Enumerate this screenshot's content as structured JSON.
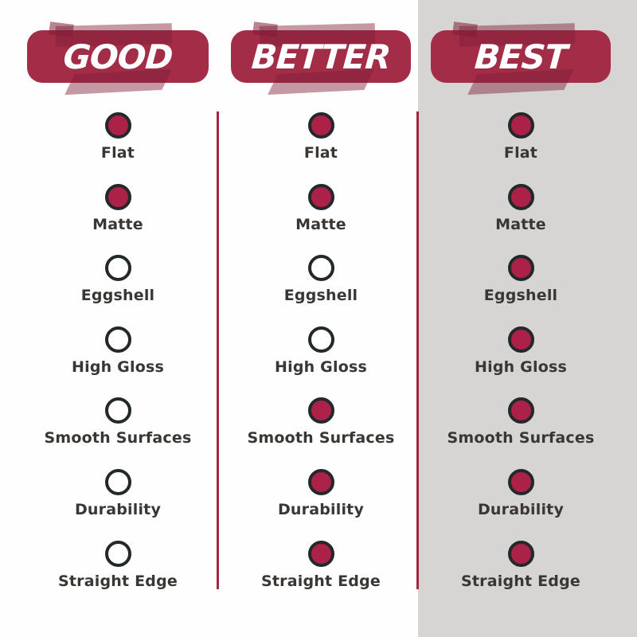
{
  "columns": [
    {
      "id": "good",
      "label": "GOOD"
    },
    {
      "id": "better",
      "label": "BETTER"
    },
    {
      "id": "best",
      "label": "BEST"
    }
  ],
  "features": [
    "Flat",
    "Matte",
    "Eggshell",
    "High Gloss",
    "Smooth Surfaces",
    "Durability",
    "Straight Edge"
  ],
  "colors": {
    "banner_red": "#a32c47",
    "dot_fill_red": "#ab2148",
    "dot_ring_dark": "#23282b",
    "divider_red": "#a22742",
    "gray_panel": "#d6d5d3",
    "label_text": "#3a3633",
    "banner_text": "#ffffff"
  },
  "chart_data": {
    "type": "table",
    "categories": [
      "Flat",
      "Matte",
      "Eggshell",
      "High Gloss",
      "Smooth Surfaces",
      "Durability",
      "Straight Edge"
    ],
    "series": [
      {
        "name": "GOOD",
        "values": [
          1,
          1,
          0,
          0,
          0,
          0,
          0
        ]
      },
      {
        "name": "BETTER",
        "values": [
          1,
          1,
          0,
          0,
          1,
          1,
          1
        ]
      },
      {
        "name": "BEST",
        "values": [
          1,
          1,
          1,
          1,
          1,
          1,
          1
        ]
      }
    ],
    "value_encoding": "1 = filled crimson dot (feature applies), 0 = empty white dot",
    "layout": "three vertical columns separated by red divider lines; BEST column on gray panel"
  }
}
